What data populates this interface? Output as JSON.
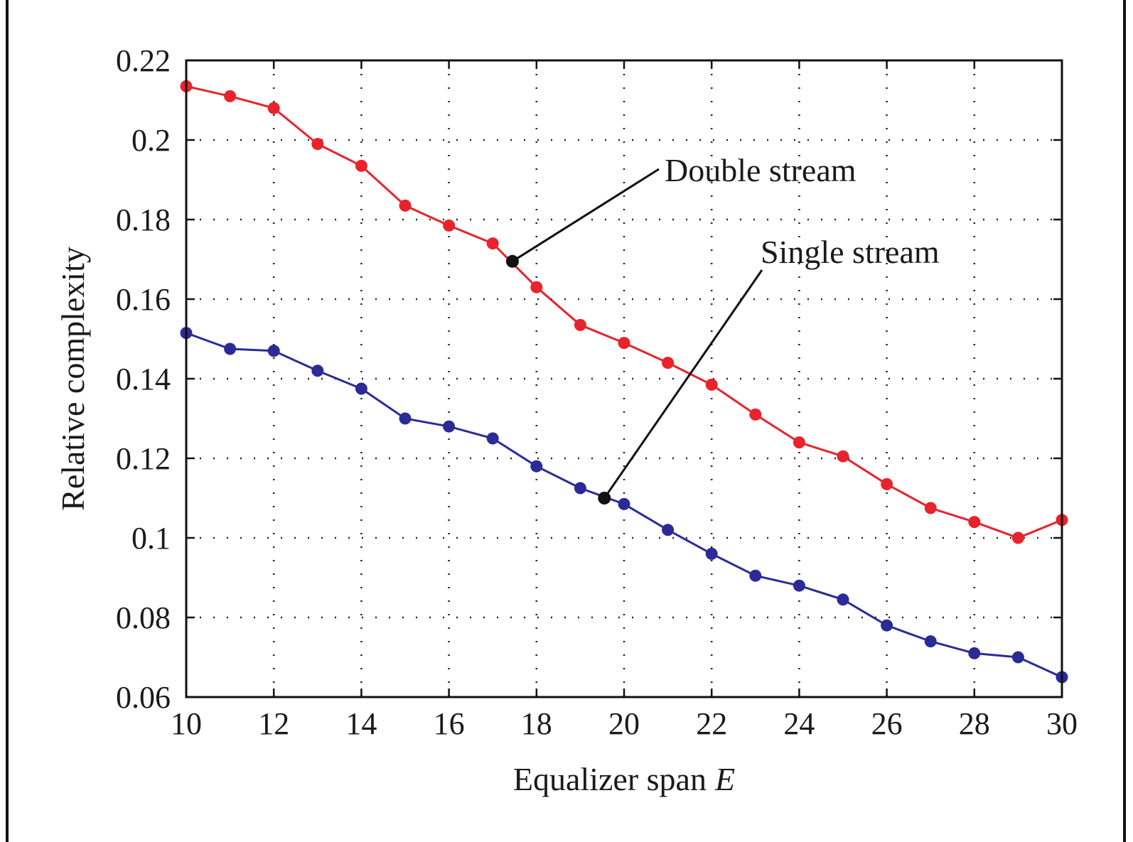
{
  "chart_data": {
    "type": "line",
    "xlabel": "Equalizer span",
    "xlabel_var": "E",
    "ylabel": "Relative complexity",
    "xlim": [
      10,
      30
    ],
    "ylim": [
      0.06,
      0.22
    ],
    "x_ticks": [
      10,
      12,
      14,
      16,
      18,
      20,
      22,
      24,
      26,
      28,
      30
    ],
    "y_ticks": [
      0.06,
      0.08,
      0.1,
      0.12,
      0.14,
      0.16,
      0.18,
      0.2,
      0.22
    ],
    "y_tick_labels": [
      "0.06",
      "0.08",
      "0.1",
      "0.12",
      "0.14",
      "0.16",
      "0.18",
      "0.2",
      "0.22"
    ],
    "grid": true,
    "x": [
      10,
      11,
      12,
      13,
      14,
      15,
      16,
      17,
      18,
      19,
      20,
      21,
      22,
      23,
      24,
      25,
      26,
      27,
      28,
      29,
      30
    ],
    "series": [
      {
        "name": "Double stream",
        "color": "#e8232c",
        "values": [
          0.2135,
          0.211,
          0.208,
          0.199,
          0.1935,
          0.1835,
          0.1785,
          0.174,
          0.163,
          0.1535,
          0.149,
          0.144,
          0.1385,
          0.131,
          0.124,
          0.1205,
          0.1135,
          0.1075,
          0.104,
          0.1,
          0.1045
        ]
      },
      {
        "name": "Single stream",
        "color": "#2b2b96",
        "values": [
          0.1515,
          0.1475,
          0.147,
          0.142,
          0.1375,
          0.13,
          0.128,
          0.125,
          0.118,
          0.1125,
          0.1085,
          0.102,
          0.096,
          0.0905,
          0.088,
          0.0845,
          0.078,
          0.074,
          0.071,
          0.07,
          0.065
        ]
      }
    ],
    "annotations": [
      {
        "text": "Double stream",
        "series": "Double stream",
        "x": 17.45,
        "y": 0.1695
      },
      {
        "text": "Single stream",
        "series": "Single stream",
        "x": 19.55,
        "y": 0.11
      }
    ]
  }
}
